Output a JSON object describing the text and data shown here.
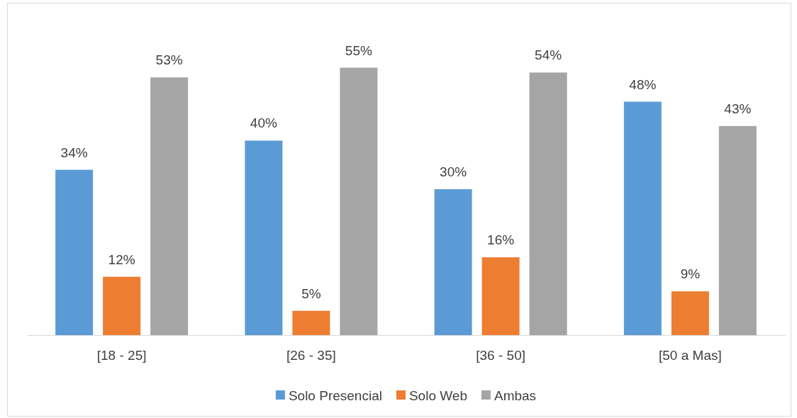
{
  "chart_data": {
    "type": "bar",
    "categories": [
      "[18 - 25]",
      "[26 - 35]",
      "[36 - 50]",
      "[50 a Mas]"
    ],
    "series": [
      {
        "name": "Solo Presencial",
        "color": "#5b9bd5",
        "values": [
          34,
          40,
          30,
          48
        ],
        "value_labels": [
          "34%",
          "40%",
          "30%",
          "48%"
        ]
      },
      {
        "name": "Solo Web",
        "color": "#ed7d31",
        "values": [
          12,
          5,
          16,
          9
        ],
        "value_labels": [
          "12%",
          "5%",
          "16%",
          "9%"
        ]
      },
      {
        "name": "Ambas",
        "color": "#a5a5a5",
        "values": [
          53,
          55,
          54,
          43
        ],
        "value_labels": [
          "53%",
          "55%",
          "54%",
          "43%"
        ]
      }
    ],
    "legend": "bottom"
  }
}
